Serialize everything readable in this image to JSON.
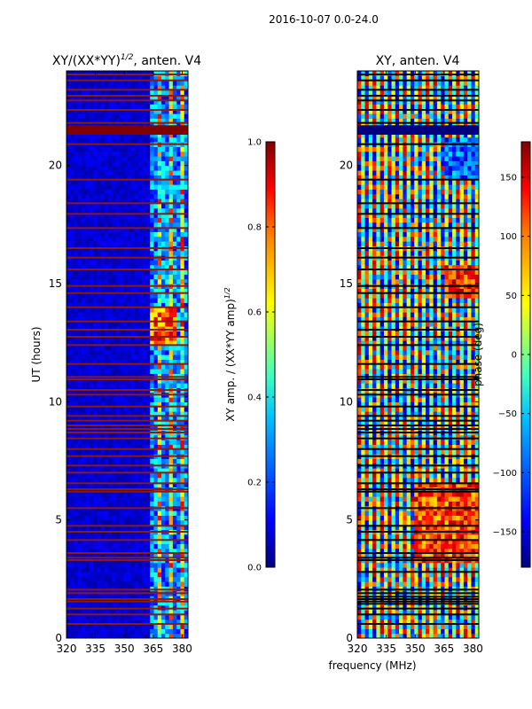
{
  "figure": {
    "suptitle": "2016-10-07 0.0-24.0",
    "shared_xlabel": "frequency (MHz)"
  },
  "colors": {
    "jet": [
      "#00007f",
      "#0000ff",
      "#007fff",
      "#00ffff",
      "#7fff7f",
      "#ffff00",
      "#ff7f00",
      "#ff0000",
      "#7f0000"
    ],
    "flag_row": "#8b1a0f",
    "flag_row_phase": "#000000"
  },
  "chart_data": [
    {
      "type": "heatmap",
      "title_main": "XY/(XX*YY)",
      "title_sup": "1/2",
      "title_rest": ", anten. V4",
      "xlabel": "",
      "ylabel": "UT (hours)",
      "xlim": [
        320,
        383
      ],
      "ylim": [
        0,
        24
      ],
      "xticks": [
        320,
        335,
        350,
        365,
        380
      ],
      "yticks": [
        0,
        5,
        10,
        15,
        20
      ],
      "colorbar": {
        "label_main": "XY amp. / (XX*YY amp)",
        "label_sup": "1/2",
        "range": [
          0.0,
          1.0
        ],
        "ticks": [
          "0.0",
          "0.2",
          "0.4",
          "0.6",
          "0.8",
          "1.0"
        ]
      },
      "quantity": "normalized cross-correlation amplitude",
      "flagged_hours": [
        0.6,
        1.0,
        1.25,
        1.55,
        1.65,
        1.9,
        2.05,
        3.3,
        3.4,
        3.6,
        4.15,
        4.5,
        4.75,
        5.5,
        6.2,
        6.3,
        6.55,
        7.0,
        7.3,
        7.7,
        8.0,
        8.45,
        8.7,
        8.85,
        9.0,
        9.2,
        9.4,
        9.8,
        10.3,
        10.5,
        10.95,
        11.05,
        11.6,
        12.4,
        12.75,
        13.05,
        13.4,
        14.0,
        14.6,
        14.9,
        15.6,
        16.1,
        16.5,
        17.35,
        17.95,
        18.4,
        19.4,
        20.9,
        21.5,
        21.65,
        21.8,
        22.35,
        22.75,
        22.95,
        23.2,
        23.6,
        23.85
      ],
      "features": [
        {
          "hours": [
            0,
            24
          ],
          "freq_mhz": [
            320,
            363
          ],
          "value": 0.08,
          "note": "low amplitude"
        },
        {
          "hours": [
            0,
            24
          ],
          "freq_mhz": [
            363,
            383
          ],
          "value": 0.55,
          "note": "striped high-amplitude band"
        },
        {
          "hours": [
            12.5,
            14.0
          ],
          "freq_mhz": [
            363,
            377
          ],
          "value": 0.8,
          "note": "high amplitude"
        },
        {
          "hours": [
            21.3,
            21.7
          ],
          "freq_mhz": [
            320,
            383
          ],
          "value": 1.0,
          "note": "flagged"
        }
      ]
    },
    {
      "type": "heatmap",
      "title_main": "XY, anten. V4",
      "xlabel": "frequency (MHz)",
      "ylabel": "",
      "xlim": [
        320,
        383
      ],
      "ylim": [
        0,
        24
      ],
      "xticks": [
        320,
        335,
        350,
        365,
        380
      ],
      "yticks": [
        0,
        5,
        10,
        15,
        20
      ],
      "colorbar": {
        "label_main": "phase (deg)",
        "range": [
          -180,
          180
        ],
        "ticks": [
          "−150",
          "−100",
          "−50",
          "0",
          "50",
          "100",
          "150"
        ]
      },
      "quantity": "cross-correlation phase",
      "flagged_hours": [
        0.6,
        1.0,
        1.25,
        1.45,
        1.55,
        1.65,
        1.75,
        1.9,
        2.05,
        2.8,
        3.3,
        3.4,
        3.6,
        4.15,
        4.5,
        4.75,
        5.5,
        6.2,
        6.3,
        6.55,
        7.0,
        7.3,
        7.7,
        8.0,
        8.45,
        8.7,
        8.85,
        9.0,
        9.2,
        9.4,
        9.8,
        10.3,
        10.5,
        10.95,
        11.05,
        11.6,
        12.4,
        12.75,
        13.05,
        13.4,
        14.0,
        14.6,
        14.9,
        15.6,
        16.1,
        16.5,
        17.35,
        17.95,
        18.4,
        19.4,
        20.9,
        21.5,
        21.65,
        21.8,
        22.35,
        22.75,
        22.95,
        23.2,
        23.6,
        23.85
      ],
      "features": [
        {
          "hours": [
            0,
            24
          ],
          "freq_mhz": [
            320,
            383
          ],
          "value": 0,
          "note": "phase noise with striped columns"
        },
        {
          "hours": [
            3.2,
            6.5
          ],
          "freq_mhz": [
            350,
            383
          ],
          "value": 160,
          "note": "coherent positive phase"
        },
        {
          "hours": [
            14.5,
            15.7
          ],
          "freq_mhz": [
            365,
            383
          ],
          "value": 175,
          "note": "coherent positive phase"
        },
        {
          "hours": [
            19.5,
            21.2
          ],
          "freq_mhz": [
            365,
            383
          ],
          "value": -150,
          "note": "coherent negative phase"
        },
        {
          "hours": [
            21.3,
            21.7
          ],
          "freq_mhz": [
            320,
            383
          ],
          "value": -180,
          "note": "flagged"
        }
      ]
    }
  ]
}
